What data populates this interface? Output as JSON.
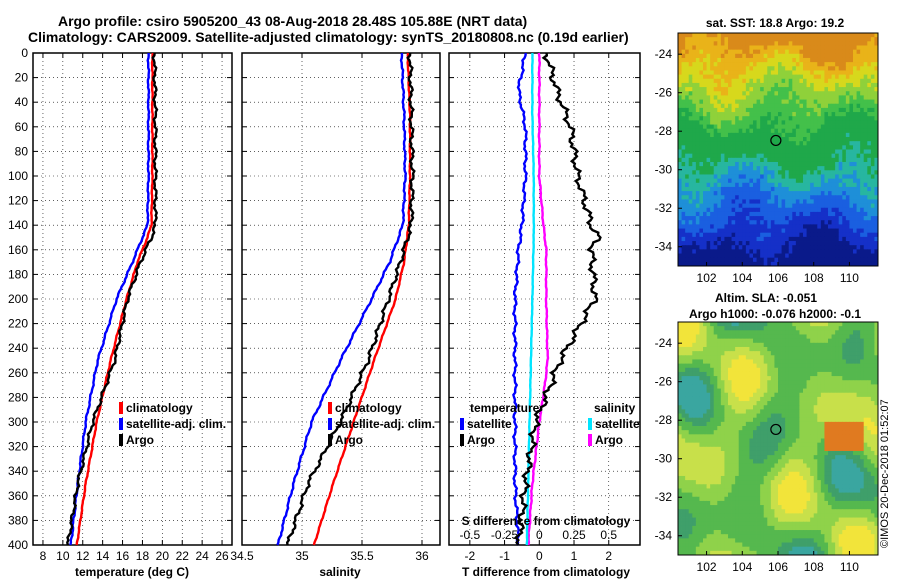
{
  "header": {
    "line1": "Argo profile: csiro 5905200_43 08-Aug-2018 28.48S 105.88E (NRT data)",
    "line2": "Climatology: CARS2009. Satellite-adjusted climatology: synTS_20180808.nc (0.19d earlier)"
  },
  "watermark": "©IMOS 20-Dec-2018 01:52:07",
  "colors": {
    "climatology": "#ff0000",
    "satellite": "#0000ff",
    "argo": "#000000",
    "s_satellite": "#00e5ff",
    "s_argo": "#ff00ff"
  },
  "chart_data": [
    {
      "type": "line",
      "name": "temperature",
      "xlabel": "temperature (deg C)",
      "ylim": [
        0,
        400
      ],
      "xlim": [
        7,
        27
      ],
      "xticks": [
        8,
        10,
        12,
        14,
        16,
        18,
        20,
        22,
        24,
        26
      ],
      "yticks": [
        0,
        20,
        40,
        60,
        80,
        100,
        120,
        140,
        160,
        180,
        200,
        220,
        240,
        260,
        280,
        300,
        320,
        340,
        360,
        380,
        400
      ],
      "legend": [
        "climatology",
        "satellite-adj. clim.",
        "Argo"
      ],
      "series": [
        {
          "name": "climatology",
          "depth": [
            0,
            50,
            100,
            140,
            150,
            170,
            200,
            250,
            300,
            350,
            400
          ],
          "values": [
            19.0,
            19.0,
            19.0,
            18.9,
            18.5,
            17.5,
            16.4,
            14.8,
            13.4,
            12.3,
            11.4
          ]
        },
        {
          "name": "satellite-adj. clim.",
          "depth": [
            0,
            50,
            100,
            140,
            150,
            170,
            200,
            250,
            300,
            350,
            400
          ],
          "values": [
            18.6,
            18.6,
            18.6,
            18.5,
            18.0,
            17.0,
            15.4,
            13.5,
            12.3,
            11.5,
            10.8
          ]
        },
        {
          "name": "Argo",
          "depth": [
            0,
            50,
            100,
            140,
            150,
            170,
            200,
            250,
            300,
            350,
            400
          ],
          "values": [
            19.2,
            19.3,
            19.3,
            19.3,
            18.9,
            17.8,
            16.5,
            15.2,
            13.0,
            11.5,
            10.5
          ]
        }
      ]
    },
    {
      "type": "line",
      "name": "salinity",
      "xlabel": "salinity",
      "ylim": [
        0,
        400
      ],
      "xlim": [
        34.5,
        36.15
      ],
      "xticks": [
        34.5,
        35,
        35.5,
        36
      ],
      "xtick_labels": [
        "34.5",
        "35",
        "35.5",
        "36"
      ],
      "legend": [
        "climatology",
        "satellite-adj. clim.",
        "Argo"
      ],
      "series": [
        {
          "name": "climatology",
          "depth": [
            0,
            50,
            100,
            140,
            170,
            200,
            250,
            300,
            350,
            400
          ],
          "values": [
            35.88,
            35.9,
            35.9,
            35.89,
            35.85,
            35.78,
            35.6,
            35.43,
            35.26,
            35.1
          ]
        },
        {
          "name": "satellite-adj. clim.",
          "depth": [
            0,
            50,
            100,
            140,
            170,
            200,
            250,
            300,
            350,
            400
          ],
          "values": [
            35.83,
            35.85,
            35.86,
            35.84,
            35.73,
            35.58,
            35.32,
            35.08,
            34.93,
            34.8
          ]
        },
        {
          "name": "Argo",
          "depth": [
            0,
            50,
            100,
            140,
            170,
            200,
            250,
            300,
            350,
            400
          ],
          "values": [
            35.9,
            35.91,
            35.92,
            35.91,
            35.82,
            35.72,
            35.55,
            35.32,
            35.05,
            34.88
          ]
        }
      ]
    },
    {
      "type": "line",
      "name": "differences",
      "xlabel": "T difference from climatology",
      "s_axis_label": "S difference from climatology",
      "ylim": [
        0,
        400
      ],
      "xlim": [
        -2.6,
        2.9
      ],
      "xticks": [
        -2,
        -1,
        0,
        1,
        2
      ],
      "s_xticks": [
        -0.5,
        -0.25,
        0,
        0.25,
        0.5
      ],
      "s_xtick_labels": [
        "-0.5",
        "-0.25",
        "0",
        "0.25",
        "0.5"
      ],
      "legend_t_title": "temperature",
      "legend_s_title": "salinity",
      "legend_t": [
        "satellite",
        "Argo"
      ],
      "legend_s": [
        "satellite",
        "Argo"
      ],
      "series": [
        {
          "name": "T satellite",
          "depth": [
            0,
            30,
            60,
            100,
            140,
            160,
            200,
            250,
            300,
            350,
            400
          ],
          "values": [
            -0.4,
            -0.6,
            -0.4,
            -0.4,
            -0.5,
            -0.6,
            -0.7,
            -0.7,
            -0.7,
            -0.7,
            -0.6
          ]
        },
        {
          "name": "T Argo",
          "depth": [
            0,
            30,
            60,
            100,
            140,
            150,
            160,
            200,
            250,
            300,
            350,
            400
          ],
          "values": [
            0.2,
            0.5,
            0.9,
            1.1,
            1.5,
            1.7,
            1.5,
            1.6,
            0.6,
            -0.1,
            -0.4,
            -0.6
          ]
        },
        {
          "name": "S satellite",
          "depth": [
            0,
            50,
            100,
            150,
            200,
            250,
            300,
            350,
            400
          ],
          "values": [
            -0.05,
            -0.05,
            -0.04,
            -0.04,
            -0.05,
            -0.06,
            -0.07,
            -0.08,
            -0.09
          ]
        },
        {
          "name": "S Argo",
          "depth": [
            0,
            100,
            140,
            160,
            200,
            250,
            270,
            300,
            350,
            400
          ],
          "values": [
            0.0,
            0.0,
            0.03,
            0.05,
            0.05,
            0.06,
            0.04,
            0.0,
            -0.05,
            -0.08
          ]
        }
      ]
    },
    {
      "type": "heatmap",
      "name": "sst-map",
      "title": "sat. SST: 18.8 Argo: 19.2",
      "xticks": [
        102,
        104,
        106,
        108,
        110
      ],
      "yticks": [
        -24,
        -26,
        -28,
        -30,
        -32,
        -34
      ],
      "xlim": [
        100.4,
        111.6
      ],
      "ylim": [
        -35,
        -22.9
      ],
      "marker": {
        "lon": 105.88,
        "lat": -28.48
      }
    },
    {
      "type": "heatmap",
      "name": "sla-map",
      "title_line1": "Altim. SLA: -0.051",
      "title_line2": "Argo h1000: -0.076 h2000: -0.1",
      "xticks": [
        102,
        104,
        106,
        108,
        110
      ],
      "yticks": [
        -24,
        -26,
        -28,
        -30,
        -32,
        -34
      ],
      "xlim": [
        100.4,
        111.6
      ],
      "ylim": [
        -35,
        -22.9
      ],
      "marker": {
        "lon": 105.88,
        "lat": -28.48
      }
    }
  ]
}
